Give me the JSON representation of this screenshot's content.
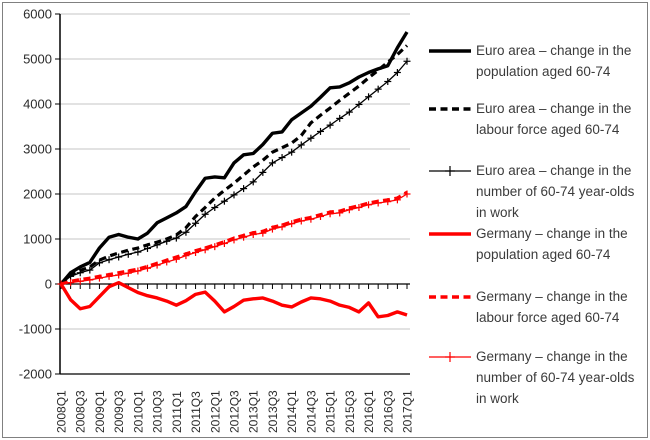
{
  "chart_data": {
    "type": "line",
    "x": [
      "2008Q1",
      "2008Q2",
      "2008Q3",
      "2008Q4",
      "2009Q1",
      "2009Q2",
      "2009Q3",
      "2009Q4",
      "2010Q1",
      "2010Q2",
      "2010Q3",
      "2010Q4",
      "2011Q1",
      "2011Q2",
      "2011Q3",
      "2011Q4",
      "2012Q1",
      "2012Q2",
      "2012Q3",
      "2012Q4",
      "2013Q1",
      "2013Q2",
      "2013Q3",
      "2013Q4",
      "2014Q1",
      "2014Q2",
      "2014Q3",
      "2014Q4",
      "2015Q1",
      "2015Q2",
      "2015Q3",
      "2015Q4",
      "2016Q1",
      "2016Q2",
      "2016Q3",
      "2016Q4",
      "2017Q1"
    ],
    "x_tick_labels": [
      "2008Q1",
      "2008Q3",
      "2009Q1",
      "2009Q3",
      "2010Q1",
      "2010Q3",
      "2011Q1",
      "2011Q3",
      "2012Q1",
      "2012Q3",
      "2013Q1",
      "2013Q3",
      "2014Q1",
      "2014Q3",
      "2015Q1",
      "2015Q3",
      "2016Q1",
      "2016Q3",
      "2017Q1"
    ],
    "x_label_every": 2,
    "y_tick_labels": [
      "6000",
      "5000",
      "4000",
      "3000",
      "2000",
      "1000",
      "0",
      "-1000",
      "-2000"
    ],
    "ylim": [
      -2000,
      6000
    ],
    "y_step": 1000,
    "grid": true,
    "legend_position": "right",
    "series": [
      {
        "name": "Euro area – change in the population aged 60-74",
        "color": "#000000",
        "style": "solid-thick",
        "marker": "none",
        "values": [
          0,
          250,
          380,
          480,
          800,
          1040,
          1100,
          1040,
          1000,
          1130,
          1360,
          1470,
          1580,
          1720,
          2050,
          2350,
          2380,
          2360,
          2690,
          2870,
          2900,
          3100,
          3350,
          3380,
          3650,
          3800,
          3950,
          4150,
          4360,
          4380,
          4470,
          4600,
          4700,
          4780,
          4850,
          5250,
          5600
        ]
      },
      {
        "name": "Euro area – change in the labour force aged 60-74",
        "color": "#000000",
        "style": "dashed",
        "marker": "none",
        "values": [
          0,
          200,
          300,
          380,
          530,
          620,
          690,
          750,
          800,
          870,
          930,
          1000,
          1090,
          1250,
          1500,
          1700,
          1910,
          2080,
          2240,
          2420,
          2600,
          2750,
          2930,
          3030,
          3130,
          3300,
          3580,
          3750,
          3910,
          4080,
          4240,
          4400,
          4580,
          4750,
          4930,
          5100,
          5300
        ]
      },
      {
        "name": "Euro area – change in the number of 60-74 year-olds in work",
        "color": "#000000",
        "style": "solid-thin",
        "marker": "plus",
        "values": [
          0,
          170,
          250,
          310,
          470,
          540,
          600,
          660,
          710,
          790,
          870,
          950,
          1020,
          1150,
          1350,
          1550,
          1700,
          1840,
          1980,
          2120,
          2270,
          2480,
          2690,
          2810,
          2930,
          3090,
          3240,
          3390,
          3530,
          3680,
          3820,
          3990,
          4160,
          4330,
          4500,
          4700,
          4950
        ]
      },
      {
        "name": "Germany – change in the population aged 60-74",
        "color": "#ff0000",
        "style": "solid-thick",
        "marker": "none",
        "values": [
          0,
          -350,
          -550,
          -500,
          -280,
          -60,
          30,
          -80,
          -190,
          -260,
          -310,
          -380,
          -470,
          -370,
          -230,
          -180,
          -380,
          -620,
          -500,
          -360,
          -330,
          -310,
          -380,
          -470,
          -510,
          -400,
          -310,
          -330,
          -380,
          -470,
          -520,
          -620,
          -420,
          -730,
          -700,
          -620,
          -690
        ]
      },
      {
        "name": "Germany – change in the labour force aged 60-74",
        "color": "#ff0000",
        "style": "dashed",
        "marker": "none",
        "values": [
          0,
          60,
          100,
          130,
          170,
          210,
          250,
          290,
          330,
          390,
          460,
          530,
          600,
          670,
          740,
          800,
          870,
          940,
          1020,
          1080,
          1140,
          1170,
          1260,
          1310,
          1380,
          1440,
          1480,
          1540,
          1600,
          1620,
          1690,
          1740,
          1800,
          1840,
          1870,
          1910,
          2040
        ]
      },
      {
        "name": "Germany – change in the number of 60-74 year-olds in work",
        "color": "#ff0000",
        "style": "solid-thin",
        "marker": "plus",
        "values": [
          0,
          30,
          60,
          90,
          130,
          170,
          200,
          240,
          290,
          350,
          420,
          490,
          550,
          630,
          700,
          760,
          830,
          900,
          980,
          1040,
          1100,
          1130,
          1220,
          1270,
          1340,
          1400,
          1440,
          1500,
          1560,
          1580,
          1650,
          1700,
          1760,
          1800,
          1830,
          1870,
          2000
        ]
      }
    ]
  },
  "colors": {
    "grid": "#c6c6c6",
    "axis": "#000000",
    "tick_text": "#2b2b2b",
    "legend_text": "#3b3b3b",
    "frame": "#808080"
  }
}
